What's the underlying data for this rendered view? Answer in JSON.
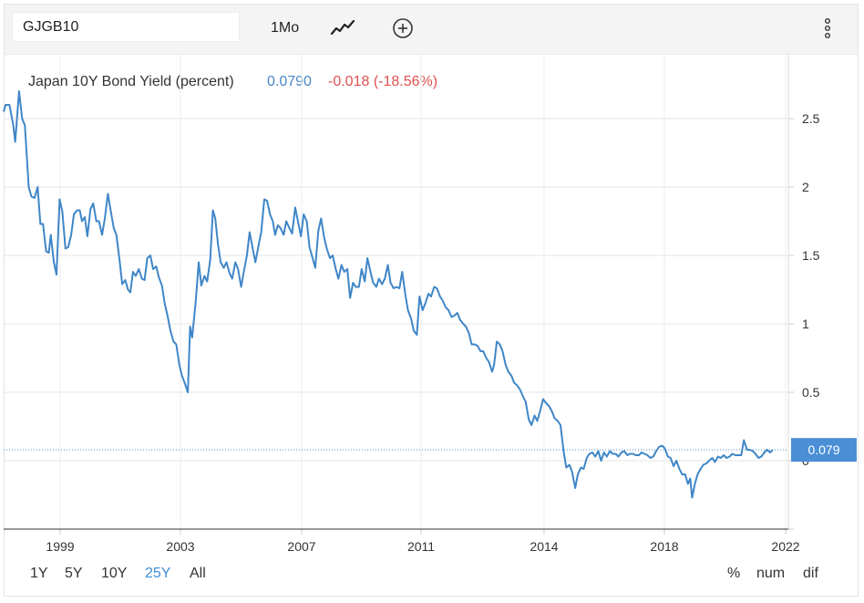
{
  "toolbar": {
    "symbol": "GJGB10",
    "interval": "1Mo",
    "chart_type_icon": "line-chart-icon",
    "compare_icon": "plus-circle-icon",
    "menu_icon": "vertical-dots-icon"
  },
  "series_info": {
    "name": "Japan 10Y Bond Yield (percent)",
    "value": "0.0790",
    "change": "-0.018 (-18.56%)"
  },
  "last_value_label": "0.079",
  "range_buttons": [
    {
      "label": "1Y",
      "active": false
    },
    {
      "label": "5Y",
      "active": false
    },
    {
      "label": "10Y",
      "active": false
    },
    {
      "label": "25Y",
      "active": true
    },
    {
      "label": "All",
      "active": false
    }
  ],
  "mode_buttons": [
    "%",
    "num",
    "dif"
  ],
  "colors": {
    "line": "#3f86c7",
    "value_text": "#4a86c5",
    "change_text": "#e05151",
    "last_value_box": "#4a8fd6"
  },
  "chart_data": {
    "type": "line",
    "title": "Japan 10Y Bond Yield (percent)",
    "xlabel": "",
    "ylabel": "",
    "x_ticks": [
      "1999",
      "2003",
      "2007",
      "2011",
      "2014",
      "2018",
      "2022"
    ],
    "y_ticks": [
      "0",
      "0.5",
      "1",
      "1.5",
      "2",
      "2.5"
    ],
    "ylim": [
      -0.5,
      2.95
    ],
    "xlim": [
      1997.85,
      2021.9
    ],
    "grid": true,
    "last_value": 0.079,
    "series": [
      {
        "values": [
          [
            1997.9,
            2.55
          ],
          [
            1997.95,
            2.6
          ],
          [
            1998.05,
            2.6
          ],
          [
            1998.15,
            2.45
          ],
          [
            1998.2,
            2.33
          ],
          [
            1998.3,
            2.7
          ],
          [
            1998.38,
            2.5
          ],
          [
            1998.45,
            2.45
          ],
          [
            1998.55,
            2.0
          ],
          [
            1998.62,
            1.93
          ],
          [
            1998.7,
            1.92
          ],
          [
            1998.78,
            2.0
          ],
          [
            1998.85,
            1.73
          ],
          [
            1998.92,
            1.73
          ],
          [
            1999.0,
            1.53
          ],
          [
            1999.07,
            1.52
          ],
          [
            1999.12,
            1.65
          ],
          [
            1999.2,
            1.45
          ],
          [
            1999.27,
            1.36
          ],
          [
            1999.35,
            1.91
          ],
          [
            1999.42,
            1.82
          ],
          [
            1999.5,
            1.55
          ],
          [
            1999.57,
            1.56
          ],
          [
            1999.65,
            1.65
          ],
          [
            1999.72,
            1.8
          ],
          [
            1999.8,
            1.83
          ],
          [
            1999.87,
            1.83
          ],
          [
            1999.93,
            1.75
          ],
          [
            2000.0,
            1.78
          ],
          [
            2000.07,
            1.64
          ],
          [
            2000.15,
            1.84
          ],
          [
            2000.22,
            1.88
          ],
          [
            2000.3,
            1.75
          ],
          [
            2000.37,
            1.75
          ],
          [
            2000.45,
            1.65
          ],
          [
            2000.52,
            1.77
          ],
          [
            2000.6,
            1.95
          ],
          [
            2000.67,
            1.83
          ],
          [
            2000.75,
            1.7
          ],
          [
            2000.82,
            1.65
          ],
          [
            2000.9,
            1.47
          ],
          [
            2000.97,
            1.29
          ],
          [
            2001.05,
            1.32
          ],
          [
            2001.12,
            1.25
          ],
          [
            2001.18,
            1.23
          ],
          [
            2001.25,
            1.38
          ],
          [
            2001.32,
            1.35
          ],
          [
            2001.4,
            1.4
          ],
          [
            2001.48,
            1.33
          ],
          [
            2001.55,
            1.32
          ],
          [
            2001.62,
            1.48
          ],
          [
            2001.7,
            1.5
          ],
          [
            2001.77,
            1.4
          ],
          [
            2001.85,
            1.42
          ],
          [
            2001.92,
            1.34
          ],
          [
            2002.0,
            1.28
          ],
          [
            2002.07,
            1.15
          ],
          [
            2002.15,
            1.05
          ],
          [
            2002.22,
            0.95
          ],
          [
            2002.3,
            0.87
          ],
          [
            2002.37,
            0.85
          ],
          [
            2002.45,
            0.7
          ],
          [
            2002.52,
            0.62
          ],
          [
            2002.6,
            0.56
          ],
          [
            2002.67,
            0.5
          ],
          [
            2002.73,
            0.98
          ],
          [
            2002.78,
            0.9
          ],
          [
            2002.87,
            1.15
          ],
          [
            2002.95,
            1.45
          ],
          [
            2003.02,
            1.28
          ],
          [
            2003.1,
            1.35
          ],
          [
            2003.17,
            1.31
          ],
          [
            2003.25,
            1.47
          ],
          [
            2003.32,
            1.83
          ],
          [
            2003.38,
            1.77
          ],
          [
            2003.45,
            1.58
          ],
          [
            2003.52,
            1.45
          ],
          [
            2003.6,
            1.41
          ],
          [
            2003.67,
            1.45
          ],
          [
            2003.75,
            1.37
          ],
          [
            2003.82,
            1.33
          ],
          [
            2003.9,
            1.45
          ],
          [
            2003.97,
            1.4
          ],
          [
            2004.05,
            1.27
          ],
          [
            2004.12,
            1.38
          ],
          [
            2004.2,
            1.5
          ],
          [
            2004.27,
            1.67
          ],
          [
            2004.35,
            1.55
          ],
          [
            2004.42,
            1.45
          ],
          [
            2004.5,
            1.57
          ],
          [
            2004.57,
            1.67
          ],
          [
            2004.65,
            1.91
          ],
          [
            2004.72,
            1.9
          ],
          [
            2004.8,
            1.8
          ],
          [
            2004.87,
            1.75
          ],
          [
            2004.93,
            1.65
          ],
          [
            2005.0,
            1.72
          ],
          [
            2005.07,
            1.7
          ],
          [
            2005.15,
            1.65
          ],
          [
            2005.22,
            1.75
          ],
          [
            2005.3,
            1.7
          ],
          [
            2005.37,
            1.66
          ],
          [
            2005.45,
            1.85
          ],
          [
            2005.52,
            1.75
          ],
          [
            2005.6,
            1.64
          ],
          [
            2005.67,
            1.8
          ],
          [
            2005.75,
            1.75
          ],
          [
            2005.82,
            1.56
          ],
          [
            2005.9,
            1.48
          ],
          [
            2005.97,
            1.41
          ],
          [
            2006.05,
            1.68
          ],
          [
            2006.12,
            1.77
          ],
          [
            2006.2,
            1.63
          ],
          [
            2006.27,
            1.55
          ],
          [
            2006.35,
            1.48
          ],
          [
            2006.42,
            1.5
          ],
          [
            2006.5,
            1.4
          ],
          [
            2006.57,
            1.33
          ],
          [
            2006.65,
            1.43
          ],
          [
            2006.72,
            1.38
          ],
          [
            2006.8,
            1.4
          ],
          [
            2006.87,
            1.19
          ],
          [
            2006.95,
            1.3
          ],
          [
            2007.02,
            1.27
          ],
          [
            2007.1,
            1.27
          ],
          [
            2007.17,
            1.4
          ],
          [
            2007.25,
            1.31
          ],
          [
            2007.32,
            1.48
          ],
          [
            2007.4,
            1.38
          ],
          [
            2007.47,
            1.3
          ],
          [
            2007.55,
            1.27
          ],
          [
            2007.62,
            1.33
          ],
          [
            2007.7,
            1.29
          ],
          [
            2007.77,
            1.33
          ],
          [
            2007.85,
            1.43
          ],
          [
            2007.92,
            1.3
          ],
          [
            2008.0,
            1.26
          ],
          [
            2008.07,
            1.27
          ],
          [
            2008.15,
            1.26
          ],
          [
            2008.22,
            1.38
          ],
          [
            2008.3,
            1.22
          ],
          [
            2008.37,
            1.1
          ],
          [
            2008.45,
            1.04
          ],
          [
            2008.52,
            0.95
          ],
          [
            2008.6,
            0.92
          ],
          [
            2008.67,
            1.2
          ],
          [
            2008.75,
            1.1
          ],
          [
            2008.82,
            1.15
          ],
          [
            2008.9,
            1.22
          ],
          [
            2008.97,
            1.2
          ],
          [
            2009.05,
            1.27
          ],
          [
            2009.12,
            1.26
          ],
          [
            2009.2,
            1.2
          ],
          [
            2009.27,
            1.17
          ],
          [
            2009.35,
            1.12
          ],
          [
            2009.42,
            1.1
          ],
          [
            2009.5,
            1.05
          ],
          [
            2009.57,
            1.06
          ],
          [
            2009.65,
            1.08
          ],
          [
            2009.72,
            1.03
          ],
          [
            2009.8,
            1.0
          ],
          [
            2009.87,
            0.98
          ],
          [
            2009.95,
            0.93
          ],
          [
            2010.02,
            0.85
          ],
          [
            2010.1,
            0.85
          ],
          [
            2010.17,
            0.84
          ],
          [
            2010.25,
            0.8
          ],
          [
            2010.32,
            0.8
          ],
          [
            2010.4,
            0.75
          ],
          [
            2010.47,
            0.72
          ],
          [
            2010.55,
            0.65
          ],
          [
            2010.6,
            0.7
          ],
          [
            2010.67,
            0.87
          ],
          [
            2010.75,
            0.85
          ],
          [
            2010.82,
            0.8
          ],
          [
            2010.9,
            0.7
          ],
          [
            2010.97,
            0.65
          ],
          [
            2011.05,
            0.62
          ],
          [
            2011.12,
            0.57
          ],
          [
            2011.2,
            0.55
          ],
          [
            2011.27,
            0.52
          ],
          [
            2011.35,
            0.47
          ],
          [
            2011.42,
            0.43
          ],
          [
            2011.5,
            0.3
          ],
          [
            2011.57,
            0.26
          ],
          [
            2011.65,
            0.33
          ],
          [
            2011.72,
            0.29
          ],
          [
            2011.8,
            0.37
          ],
          [
            2011.87,
            0.45
          ],
          [
            2011.95,
            0.42
          ],
          [
            2012.02,
            0.4
          ],
          [
            2012.1,
            0.36
          ],
          [
            2012.17,
            0.31
          ],
          [
            2012.25,
            0.29
          ],
          [
            2012.32,
            0.26
          ],
          [
            2012.4,
            0.07
          ],
          [
            2012.47,
            -0.05
          ],
          [
            2012.55,
            -0.03
          ],
          [
            2012.62,
            -0.08
          ],
          [
            2012.7,
            -0.2
          ],
          [
            2012.77,
            -0.1
          ],
          [
            2012.85,
            -0.05
          ],
          [
            2012.92,
            -0.06
          ],
          [
            2013.0,
            0.02
          ],
          [
            2013.07,
            0.05
          ],
          [
            2013.15,
            0.06
          ],
          [
            2013.22,
            0.03
          ],
          [
            2013.3,
            0.07
          ],
          [
            2013.37,
            0.0
          ],
          [
            2013.45,
            0.06
          ],
          [
            2013.52,
            0.03
          ],
          [
            2013.6,
            0.07
          ],
          [
            2013.67,
            0.05
          ],
          [
            2013.75,
            0.05
          ],
          [
            2013.82,
            0.03
          ],
          [
            2013.9,
            0.06
          ],
          [
            2013.97,
            0.07
          ],
          [
            2014.05,
            0.04
          ],
          [
            2014.12,
            0.05
          ],
          [
            2014.2,
            0.05
          ],
          [
            2014.27,
            0.04
          ],
          [
            2014.35,
            0.04
          ],
          [
            2014.42,
            0.06
          ],
          [
            2014.5,
            0.05
          ],
          [
            2014.57,
            0.04
          ],
          [
            2014.65,
            0.02
          ],
          [
            2014.72,
            0.03
          ],
          [
            2014.8,
            0.07
          ],
          [
            2014.87,
            0.1
          ],
          [
            2014.95,
            0.11
          ],
          [
            2015.02,
            0.09
          ],
          [
            2015.1,
            0.03
          ],
          [
            2015.17,
            0.02
          ],
          [
            2015.25,
            -0.04
          ],
          [
            2015.32,
            0.0
          ],
          [
            2015.4,
            -0.06
          ],
          [
            2015.47,
            -0.1
          ],
          [
            2015.55,
            -0.1
          ],
          [
            2015.62,
            -0.17
          ],
          [
            2015.68,
            -0.13
          ],
          [
            2015.73,
            -0.27
          ],
          [
            2015.8,
            -0.17
          ],
          [
            2015.87,
            -0.1
          ],
          [
            2015.95,
            -0.06
          ],
          [
            2016.02,
            -0.03
          ],
          [
            2016.1,
            -0.02
          ],
          [
            2016.17,
            0.0
          ],
          [
            2016.25,
            0.02
          ],
          [
            2016.32,
            -0.01
          ],
          [
            2016.4,
            0.03
          ],
          [
            2016.47,
            0.02
          ],
          [
            2016.55,
            0.04
          ],
          [
            2016.62,
            0.02
          ],
          [
            2016.7,
            0.03
          ],
          [
            2016.77,
            0.05
          ],
          [
            2016.85,
            0.04
          ],
          [
            2016.92,
            0.04
          ],
          [
            2017.0,
            0.04
          ],
          [
            2017.07,
            0.15
          ],
          [
            2017.15,
            0.08
          ],
          [
            2017.22,
            0.08
          ],
          [
            2017.3,
            0.07
          ],
          [
            2017.37,
            0.05
          ],
          [
            2017.45,
            0.02
          ],
          [
            2017.52,
            0.03
          ],
          [
            2017.6,
            0.06
          ],
          [
            2017.67,
            0.08
          ],
          [
            2017.75,
            0.06
          ],
          [
            2017.82,
            0.079
          ]
        ]
      }
    ]
  }
}
